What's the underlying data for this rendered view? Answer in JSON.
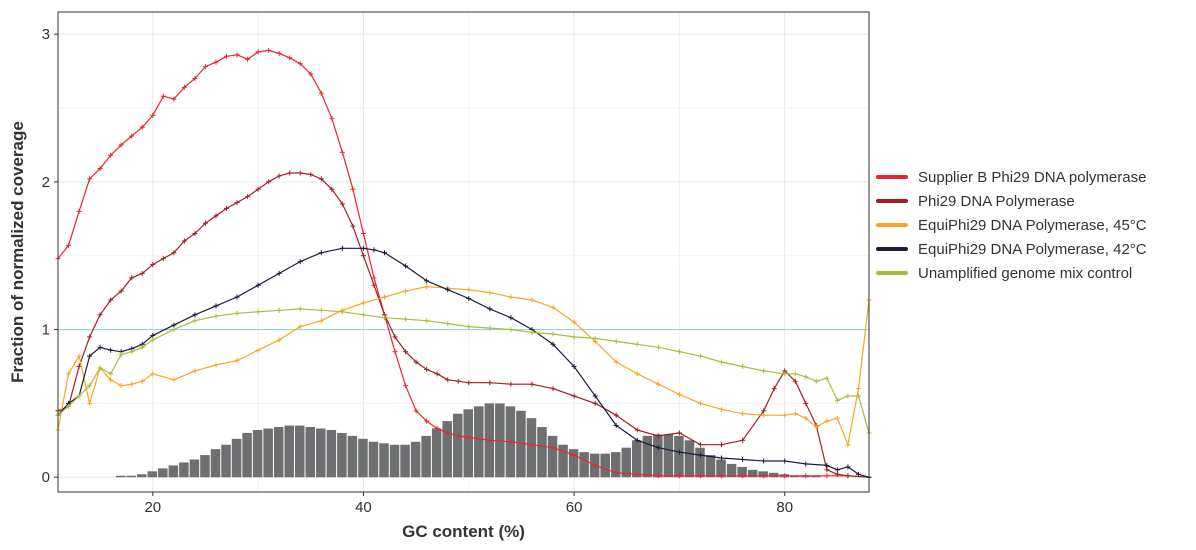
{
  "chart_data": {
    "type": "line",
    "title": "",
    "xlabel": "GC content (%)",
    "ylabel": "Fraction of normalized coverage",
    "xlim": [
      11,
      88
    ],
    "ylim": [
      -0.1,
      3.15
    ],
    "x_ticks": [
      "20",
      "40",
      "60",
      "80"
    ],
    "x_tick_values": [
      20,
      40,
      60,
      80
    ],
    "y_ticks": [
      "0",
      "1",
      "2",
      "3"
    ],
    "y_tick_values": [
      0,
      1,
      2,
      3
    ],
    "grid": true,
    "legend_position": "right",
    "reference_line": {
      "y": 1,
      "color": "#8fd9e6"
    },
    "histogram": {
      "color": "#6e6f71",
      "bin_width": 1,
      "x": [
        11,
        12,
        13,
        14,
        15,
        16,
        17,
        18,
        19,
        20,
        21,
        22,
        23,
        24,
        25,
        26,
        27,
        28,
        29,
        30,
        31,
        32,
        33,
        34,
        35,
        36,
        37,
        38,
        39,
        40,
        41,
        42,
        43,
        44,
        45,
        46,
        47,
        48,
        49,
        50,
        51,
        52,
        53,
        54,
        55,
        56,
        57,
        58,
        59,
        60,
        61,
        62,
        63,
        64,
        65,
        66,
        67,
        68,
        69,
        70,
        71,
        72,
        73,
        74,
        75,
        76,
        77,
        78,
        79,
        80,
        81,
        82,
        83,
        84,
        85,
        86,
        87,
        88
      ],
      "values": [
        0.0,
        0.0,
        0.0,
        0.0,
        0.0,
        0.0,
        0.01,
        0.01,
        0.02,
        0.04,
        0.06,
        0.08,
        0.1,
        0.12,
        0.15,
        0.19,
        0.22,
        0.26,
        0.3,
        0.32,
        0.33,
        0.34,
        0.35,
        0.35,
        0.34,
        0.33,
        0.32,
        0.3,
        0.28,
        0.26,
        0.24,
        0.23,
        0.22,
        0.22,
        0.24,
        0.28,
        0.33,
        0.38,
        0.43,
        0.46,
        0.48,
        0.5,
        0.5,
        0.48,
        0.45,
        0.4,
        0.34,
        0.28,
        0.22,
        0.19,
        0.17,
        0.16,
        0.16,
        0.17,
        0.2,
        0.25,
        0.28,
        0.29,
        0.29,
        0.28,
        0.25,
        0.2,
        0.15,
        0.12,
        0.09,
        0.07,
        0.05,
        0.04,
        0.03,
        0.02,
        0.01,
        0.01,
        0.01,
        0.0,
        0.0,
        0.0,
        0.0,
        0.0
      ]
    },
    "series": [
      {
        "name": "Supplier B Phi29 DNA polymerase",
        "color": "#e8262e",
        "x": [
          11,
          12,
          13,
          14,
          15,
          16,
          17,
          18,
          19,
          20,
          21,
          22,
          23,
          24,
          25,
          26,
          27,
          28,
          29,
          30,
          31,
          32,
          33,
          34,
          35,
          36,
          37,
          38,
          39,
          40,
          41,
          42,
          43,
          44,
          45,
          46,
          47,
          48,
          49,
          50,
          52,
          54,
          56,
          58,
          60,
          62,
          64,
          66,
          68,
          70,
          72,
          74,
          76,
          78,
          80,
          82,
          84,
          86,
          88
        ],
        "y": [
          1.48,
          1.57,
          1.8,
          2.02,
          2.09,
          2.18,
          2.25,
          2.31,
          2.37,
          2.45,
          2.58,
          2.56,
          2.64,
          2.7,
          2.78,
          2.81,
          2.85,
          2.86,
          2.83,
          2.88,
          2.89,
          2.87,
          2.84,
          2.8,
          2.73,
          2.6,
          2.43,
          2.2,
          1.95,
          1.65,
          1.35,
          1.1,
          0.85,
          0.62,
          0.45,
          0.38,
          0.33,
          0.3,
          0.28,
          0.27,
          0.25,
          0.24,
          0.22,
          0.2,
          0.15,
          0.08,
          0.03,
          0.02,
          0.01,
          0.01,
          0.01,
          0.01,
          0.01,
          0.01,
          0.01,
          0.01,
          0.01,
          0.01,
          0.0
        ]
      },
      {
        "name": "Phi29 DNA Polymerase",
        "color": "#a31f28",
        "x": [
          11,
          12,
          13,
          14,
          15,
          16,
          17,
          18,
          19,
          20,
          21,
          22,
          23,
          24,
          25,
          26,
          27,
          28,
          29,
          30,
          31,
          32,
          33,
          34,
          35,
          36,
          37,
          38,
          39,
          40,
          41,
          42,
          43,
          44,
          45,
          46,
          47,
          48,
          49,
          50,
          52,
          54,
          56,
          58,
          60,
          62,
          64,
          66,
          68,
          70,
          72,
          74,
          76,
          78,
          79,
          80,
          81,
          82,
          83,
          84,
          85,
          86,
          88
        ],
        "y": [
          0.45,
          0.48,
          0.75,
          0.95,
          1.1,
          1.2,
          1.26,
          1.35,
          1.38,
          1.44,
          1.48,
          1.52,
          1.6,
          1.65,
          1.72,
          1.77,
          1.82,
          1.86,
          1.9,
          1.95,
          2.0,
          2.04,
          2.06,
          2.06,
          2.05,
          2.02,
          1.95,
          1.85,
          1.7,
          1.5,
          1.3,
          1.1,
          0.95,
          0.85,
          0.78,
          0.73,
          0.7,
          0.66,
          0.65,
          0.64,
          0.64,
          0.63,
          0.63,
          0.6,
          0.55,
          0.5,
          0.42,
          0.32,
          0.28,
          0.3,
          0.22,
          0.22,
          0.25,
          0.45,
          0.6,
          0.72,
          0.65,
          0.5,
          0.35,
          0.05,
          0.02,
          0.01,
          0.0
        ]
      },
      {
        "name": "EquiPhi29 DNA Polymerase, 45°C",
        "color": "#f5a623",
        "x": [
          11,
          12,
          13,
          14,
          15,
          16,
          17,
          18,
          19,
          20,
          22,
          24,
          26,
          28,
          30,
          32,
          34,
          36,
          38,
          40,
          42,
          44,
          46,
          48,
          50,
          52,
          54,
          56,
          58,
          60,
          62,
          64,
          66,
          68,
          70,
          72,
          74,
          76,
          78,
          80,
          81,
          82,
          83,
          84,
          85,
          86,
          87,
          88
        ],
        "y": [
          0.32,
          0.7,
          0.82,
          0.5,
          0.74,
          0.66,
          0.62,
          0.63,
          0.65,
          0.7,
          0.66,
          0.72,
          0.76,
          0.79,
          0.86,
          0.93,
          1.02,
          1.06,
          1.13,
          1.18,
          1.22,
          1.26,
          1.29,
          1.28,
          1.27,
          1.25,
          1.22,
          1.2,
          1.15,
          1.05,
          0.92,
          0.78,
          0.7,
          0.63,
          0.56,
          0.5,
          0.46,
          0.43,
          0.42,
          0.42,
          0.43,
          0.4,
          0.34,
          0.38,
          0.4,
          0.22,
          0.6,
          1.2
        ]
      },
      {
        "name": "EquiPhi29 DNA Polymerase, 42°C",
        "color": "#1c1b3d",
        "x": [
          11,
          12,
          13,
          14,
          15,
          16,
          17,
          18,
          19,
          20,
          22,
          24,
          26,
          28,
          30,
          32,
          34,
          36,
          38,
          40,
          41,
          42,
          44,
          46,
          48,
          50,
          52,
          54,
          56,
          58,
          60,
          62,
          64,
          66,
          68,
          70,
          72,
          74,
          76,
          78,
          80,
          82,
          84,
          85,
          86,
          87,
          88
        ],
        "y": [
          0.42,
          0.5,
          0.55,
          0.82,
          0.88,
          0.86,
          0.85,
          0.87,
          0.9,
          0.96,
          1.03,
          1.1,
          1.16,
          1.22,
          1.3,
          1.38,
          1.46,
          1.52,
          1.55,
          1.55,
          1.54,
          1.52,
          1.43,
          1.33,
          1.27,
          1.21,
          1.14,
          1.08,
          1.0,
          0.9,
          0.75,
          0.55,
          0.35,
          0.25,
          0.2,
          0.17,
          0.15,
          0.13,
          0.12,
          0.11,
          0.11,
          0.09,
          0.08,
          0.05,
          0.07,
          0.02,
          0.0
        ]
      },
      {
        "name": "Unamplified genome mix control",
        "color": "#a9bc3a",
        "x": [
          11,
          12,
          13,
          14,
          15,
          16,
          17,
          18,
          19,
          20,
          22,
          24,
          26,
          28,
          30,
          32,
          34,
          36,
          38,
          40,
          42,
          44,
          46,
          48,
          50,
          52,
          54,
          56,
          58,
          60,
          62,
          64,
          66,
          68,
          70,
          72,
          74,
          76,
          78,
          80,
          81,
          82,
          83,
          84,
          85,
          86,
          87,
          88
        ],
        "y": [
          0.42,
          0.48,
          0.55,
          0.62,
          0.74,
          0.7,
          0.83,
          0.85,
          0.88,
          0.93,
          1.0,
          1.06,
          1.09,
          1.11,
          1.12,
          1.13,
          1.14,
          1.13,
          1.12,
          1.1,
          1.08,
          1.07,
          1.06,
          1.04,
          1.02,
          1.01,
          1.0,
          0.98,
          0.97,
          0.95,
          0.94,
          0.92,
          0.9,
          0.88,
          0.85,
          0.82,
          0.78,
          0.75,
          0.72,
          0.7,
          0.7,
          0.68,
          0.65,
          0.67,
          0.52,
          0.55,
          0.55,
          0.3
        ]
      }
    ]
  }
}
